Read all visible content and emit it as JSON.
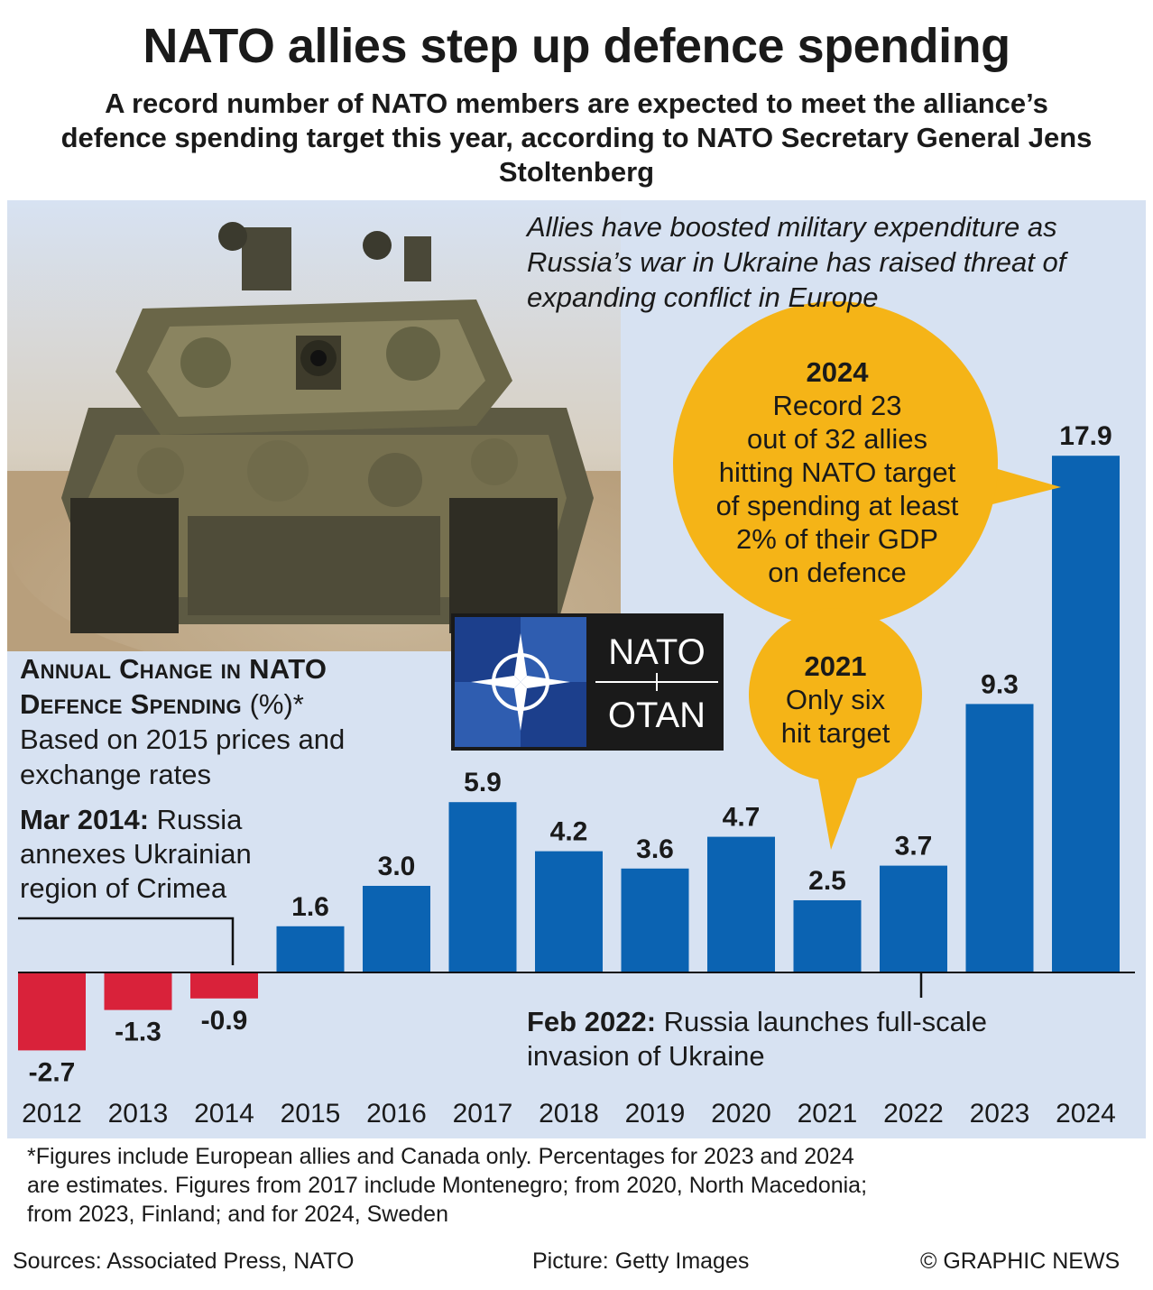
{
  "title": "NATO allies step up defence spending",
  "subtitle": "A record number of NATO members are expected to meet the alliance’s defence spending target this year, according to NATO Secretary General Jens Stoltenberg",
  "intro": "Allies have boosted military expenditure as Russia’s war in Ukraine has raised threat of expanding conflict in Europe",
  "photo_subject": "tank-photo",
  "logo": {
    "left": "NATO",
    "right": "OTAN"
  },
  "colors": {
    "positive": "#0b63b2",
    "negative": "#d9223a",
    "bubble": "#f5b417",
    "panel": "#d7e2f2"
  },
  "chart_header": {
    "title_line1": "Annual Change in NATO",
    "title_line2": "Defence Spending",
    "unit": " (%)*",
    "line3": "Based on 2015 prices and",
    "line4": "exchange rates"
  },
  "notes": {
    "crimea_date": "Mar 2014:",
    "crimea_l1": " Russia",
    "crimea_l2": "annexes Ukrainian",
    "crimea_l3": "region of Crimea",
    "feb_date": "Feb 2022:",
    "feb_l1": " Russia launches full-scale",
    "feb_l2": "invasion of Ukraine"
  },
  "bubble_2024": {
    "year": "2024",
    "l1": "Record 23",
    "l2": "out of 32 allies",
    "l3": "hitting NATO target",
    "l4": "of spending at least",
    "l5": "2% of their GDP",
    "l6": "on defence"
  },
  "bubble_2021": {
    "year": "2021",
    "l1": "Only six",
    "l2": "hit target"
  },
  "chart_data": {
    "type": "bar",
    "title": "Annual Change in NATO Defence Spending (%)*",
    "ylabel": "%",
    "categories": [
      "2012",
      "2013",
      "2014",
      "2015",
      "2016",
      "2017",
      "2018",
      "2019",
      "2020",
      "2021",
      "2022",
      "2023",
      "2024"
    ],
    "values": [
      -2.7,
      -1.3,
      -0.9,
      1.6,
      3.0,
      5.9,
      4.2,
      3.6,
      4.7,
      2.5,
      3.7,
      9.3,
      17.9
    ],
    "labels": [
      "-2.7",
      "-1.3",
      "-0.9",
      "1.6",
      "3.0",
      "5.9",
      "4.2",
      "3.6",
      "4.7",
      "2.5",
      "3.7",
      "9.3",
      "17.9"
    ],
    "ylim": [
      -2.7,
      17.9
    ]
  },
  "footnote": {
    "l1": "*Figures include European allies and Canada only. Percentages for 2023 and 2024",
    "l2": "are estimates. Figures from 2017 include Montenegro; from 2020, North Macedonia;",
    "l3": "from 2023, Finland; and for 2024, Sweden"
  },
  "credits": {
    "sources": "Sources: Associated Press, NATO",
    "picture": "Picture: Getty Images",
    "copyright": "© GRAPHIC NEWS"
  }
}
